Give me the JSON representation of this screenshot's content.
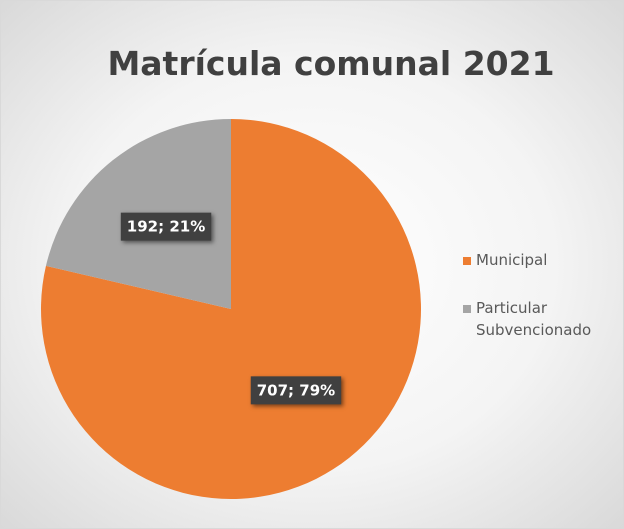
{
  "chart_data": {
    "type": "pie",
    "title": "Matrícula comunal 2021",
    "categories": [
      "Municipal",
      "Particular Subvencionado"
    ],
    "values": [
      707,
      192
    ],
    "value_labels": [
      "707; 79%",
      "192; 21%"
    ],
    "colors": [
      "#ed7d31",
      "#a5a5a5"
    ],
    "legend": "right"
  }
}
